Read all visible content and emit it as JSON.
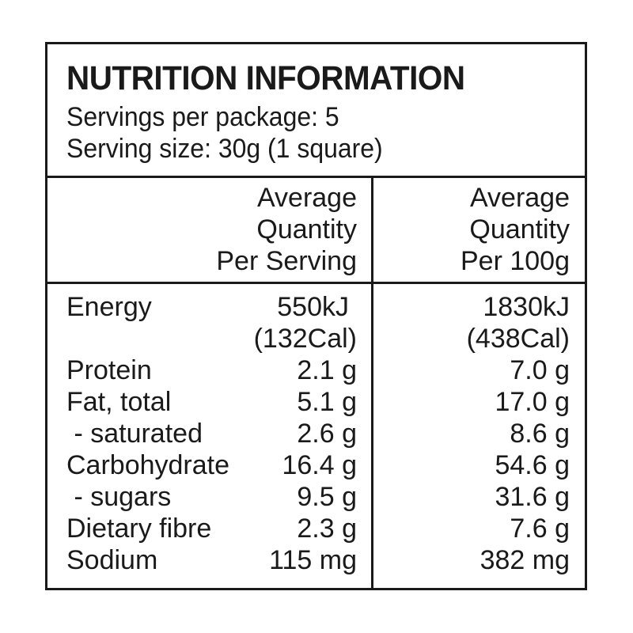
{
  "panel": {
    "title": "NUTRITION INFORMATION",
    "servings_per_package": "Servings per package: 5",
    "serving_size": "Serving size: 30g (1 square)"
  },
  "columns": {
    "per_serving": [
      "Average",
      "Quantity",
      "Per Serving"
    ],
    "per_100g": [
      "Average",
      "Quantity",
      "Per 100g"
    ]
  },
  "rows": [
    {
      "label": "Energy",
      "per_serving": [
        "550kJ",
        "(132Cal)"
      ],
      "per_100g": [
        "1830kJ",
        "(438Cal)"
      ]
    },
    {
      "label": "Protein",
      "per_serving": "2.1 g",
      "per_100g": "7.0 g"
    },
    {
      "label": "Fat, total",
      "per_serving": "5.1 g",
      "per_100g": "17.0 g"
    },
    {
      "label": " - saturated",
      "per_serving": "2.6 g",
      "per_100g": "8.6 g"
    },
    {
      "label": "Carbohydrate",
      "per_serving": "16.4 g",
      "per_100g": "54.6 g"
    },
    {
      "label": " - sugars",
      "per_serving": "9.5 g",
      "per_100g": "31.6 g"
    },
    {
      "label": "Dietary fibre",
      "per_serving": "2.3 g",
      "per_100g": "7.6 g"
    },
    {
      "label": "Sodium",
      "per_serving": "115 mg",
      "per_100g": "382 mg"
    }
  ],
  "colors": {
    "ink": "#1a1a1a",
    "background": "#ffffff"
  }
}
